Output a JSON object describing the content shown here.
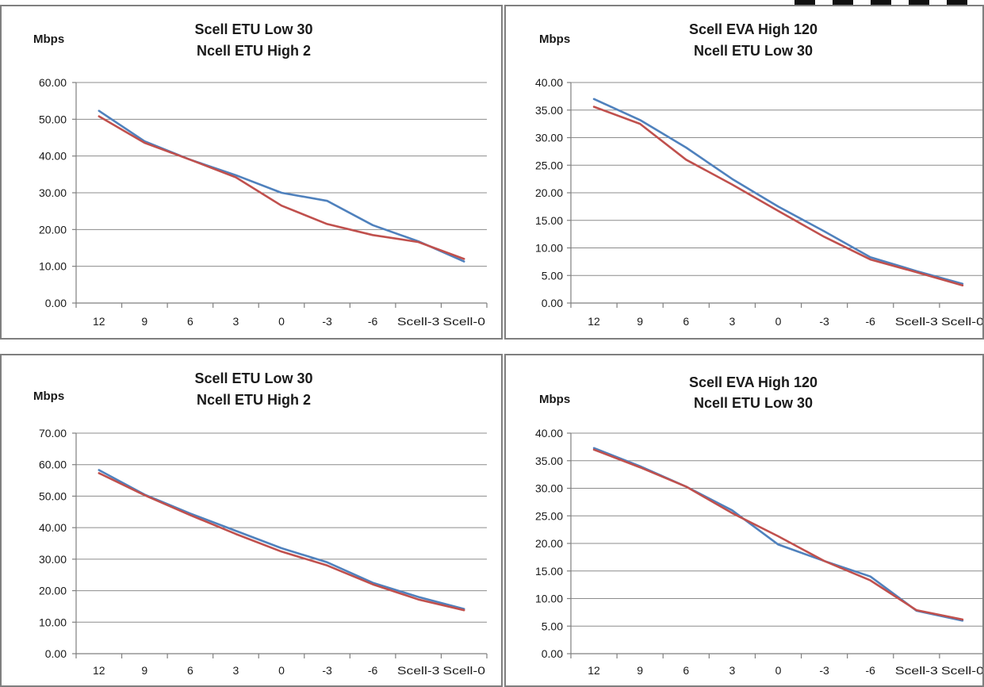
{
  "colors": {
    "series_blue": "#4f81bd",
    "series_red": "#c0504d"
  },
  "chart_data": [
    {
      "type": "line",
      "title": [
        "Scell ETU Low 30",
        "Ncell ETU High 2"
      ],
      "ylabel": "Mbps",
      "categories": [
        "12",
        "9",
        "6",
        "3",
        "0",
        "-3",
        "-6",
        "Scell-3",
        "Scell-0"
      ],
      "ylim": [
        0,
        60
      ],
      "yticks": [
        "0.00",
        "10.00",
        "20.00",
        "30.00",
        "40.00",
        "50.00",
        "60.00"
      ],
      "grid": true,
      "legend": "none",
      "series": [
        {
          "values": [
            52.3,
            44.0,
            39.0,
            34.8,
            30.0,
            27.8,
            21.2,
            16.8,
            11.3
          ]
        },
        {
          "values": [
            50.8,
            43.6,
            39.0,
            34.2,
            26.5,
            21.5,
            18.5,
            16.6,
            12.0
          ]
        }
      ]
    },
    {
      "type": "line",
      "title": [
        "Scell EVA High 120",
        "Ncell ETU Low 30"
      ],
      "ylabel": "Mbps",
      "categories": [
        "12",
        "9",
        "6",
        "3",
        "0",
        "-3",
        "-6",
        "Scell-3",
        "Scell-0"
      ],
      "ylim": [
        0,
        40
      ],
      "yticks": [
        "0.00",
        "5.00",
        "10.00",
        "15.00",
        "20.00",
        "25.00",
        "30.00",
        "35.00",
        "40.00"
      ],
      "grid": true,
      "legend": "none",
      "series": [
        {
          "values": [
            37.0,
            33.2,
            28.2,
            22.5,
            17.5,
            13.0,
            8.3,
            5.8,
            3.5
          ]
        },
        {
          "values": [
            35.6,
            32.5,
            26.0,
            21.5,
            16.7,
            12.0,
            7.9,
            5.6,
            3.2
          ]
        }
      ]
    },
    {
      "type": "line",
      "title": [
        "Scell ETU Low 30",
        "Ncell ETU High 2"
      ],
      "ylabel": "Mbps",
      "categories": [
        "12",
        "9",
        "6",
        "3",
        "0",
        "-3",
        "-6",
        "Scell-3",
        "Scell-0"
      ],
      "ylim": [
        0,
        70
      ],
      "yticks": [
        "0.00",
        "10.00",
        "20.00",
        "30.00",
        "40.00",
        "50.00",
        "60.00",
        "70.00"
      ],
      "grid": true,
      "legend": "none",
      "series": [
        {
          "values": [
            58.3,
            50.5,
            44.5,
            39.0,
            33.5,
            29.0,
            22.5,
            18.0,
            14.2
          ]
        },
        {
          "values": [
            57.3,
            50.3,
            44.0,
            38.0,
            32.4,
            28.0,
            22.0,
            17.2,
            13.8
          ]
        }
      ]
    },
    {
      "type": "line",
      "title": [
        "Scell EVA High 120",
        "Ncell ETU Low 30"
      ],
      "ylabel": "Mbps",
      "categories": [
        "12",
        "9",
        "6",
        "3",
        "0",
        "-3",
        "-6",
        "Scell-3",
        "Scell-0"
      ],
      "ylim": [
        0,
        40
      ],
      "yticks": [
        "0.00",
        "5.00",
        "10.00",
        "15.00",
        "20.00",
        "25.00",
        "30.00",
        "35.00",
        "40.00"
      ],
      "grid": true,
      "legend": "none",
      "series": [
        {
          "values": [
            37.3,
            34.0,
            30.3,
            26.0,
            19.8,
            16.8,
            14.0,
            7.8,
            6.0
          ]
        },
        {
          "values": [
            37.0,
            33.8,
            30.3,
            25.5,
            21.3,
            16.8,
            13.3,
            7.9,
            6.2
          ]
        }
      ]
    }
  ]
}
